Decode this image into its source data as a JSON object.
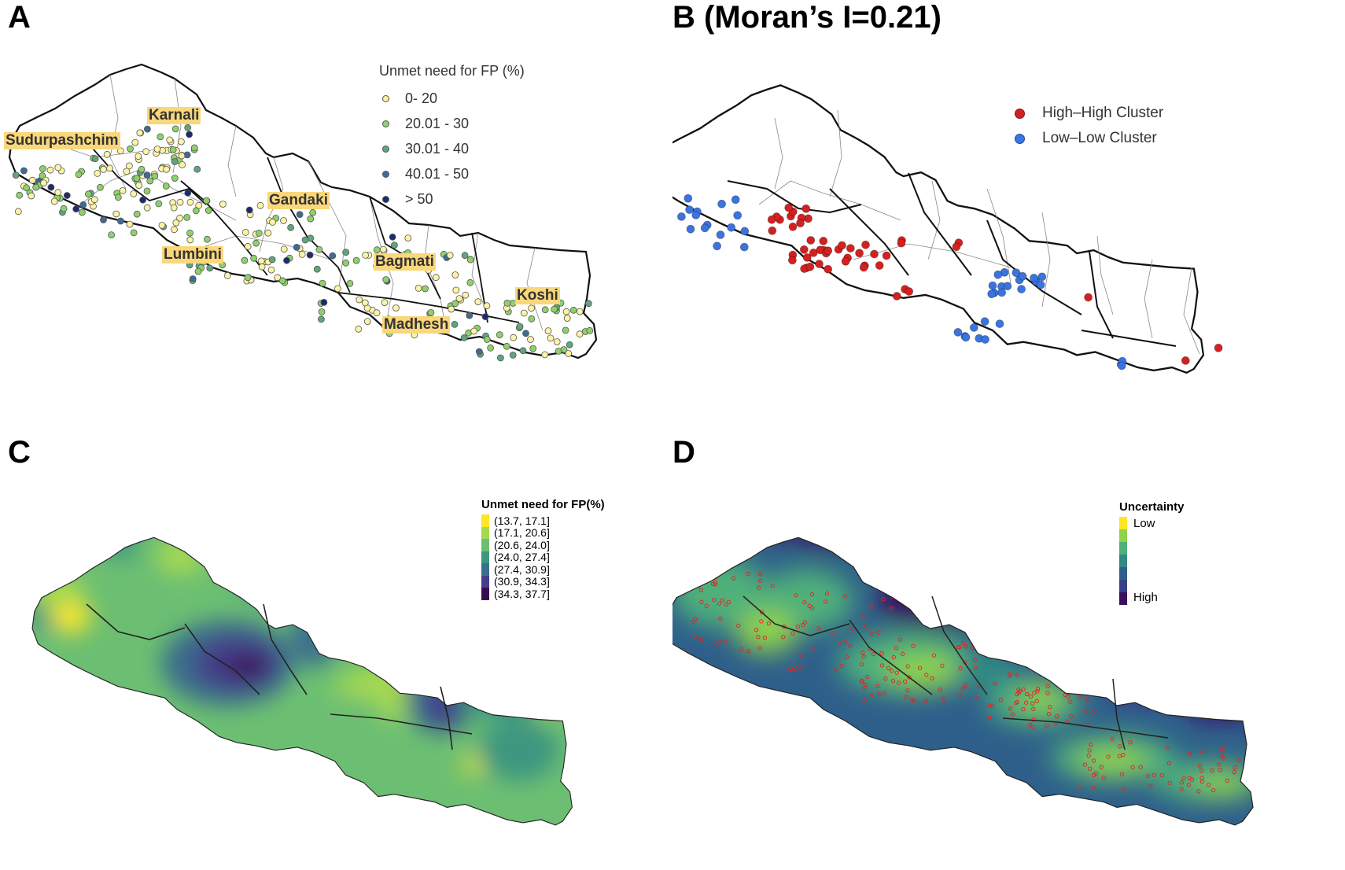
{
  "panels": {
    "a": {
      "label": "A",
      "legend": {
        "title": "Unmet need for FP (%)",
        "classes": [
          {
            "label": "0- 20",
            "color": "#fbf3a6"
          },
          {
            "label": "20.01 - 30",
            "color": "#8ed16a"
          },
          {
            "label": "30.01 - 40",
            "color": "#5ea77e"
          },
          {
            "label": "40.01 - 50",
            "color": "#3d6b96"
          },
          {
            "label": "> 50",
            "color": "#1e2a6e"
          }
        ]
      },
      "provinces": [
        {
          "name": "Sudurpashchim"
        },
        {
          "name": "Karnali"
        },
        {
          "name": "Gandaki"
        },
        {
          "name": "Lumbini"
        },
        {
          "name": "Bagmati"
        },
        {
          "name": "Koshi"
        },
        {
          "name": "Madhesh"
        }
      ]
    },
    "b": {
      "label": "B",
      "title": "(Moran’s I=0.21)",
      "legend": [
        {
          "label": "High–High Cluster",
          "color": "#d62020"
        },
        {
          "label": "Low–Low Cluster",
          "color": "#3b74e0"
        }
      ]
    },
    "c": {
      "label": "C",
      "legend": {
        "title": "Unmet need for FP(%)",
        "classes": [
          {
            "label": "(13.7, 17.1]",
            "color": "#fde725"
          },
          {
            "label": "(17.1, 20.6]",
            "color": "#a6d94f"
          },
          {
            "label": "(20.6, 24.0]",
            "color": "#6cbf72"
          },
          {
            "label": "(24.0, 27.4]",
            "color": "#3c9680"
          },
          {
            "label": "(27.4, 30.9]",
            "color": "#3b6e8c"
          },
          {
            "label": "(30.9, 34.3]",
            "color": "#453c8a"
          },
          {
            "label": "(34.3, 37.7]",
            "color": "#3a0a4f"
          }
        ]
      }
    },
    "d": {
      "label": "D",
      "legend": {
        "title": "Uncertainty",
        "low": "Low",
        "high": "High",
        "colors": [
          "#fde725",
          "#8fd24c",
          "#4fb07a",
          "#2f8a84",
          "#2e5f8b",
          "#3a3f89",
          "#3a0f5c"
        ]
      }
    }
  }
}
